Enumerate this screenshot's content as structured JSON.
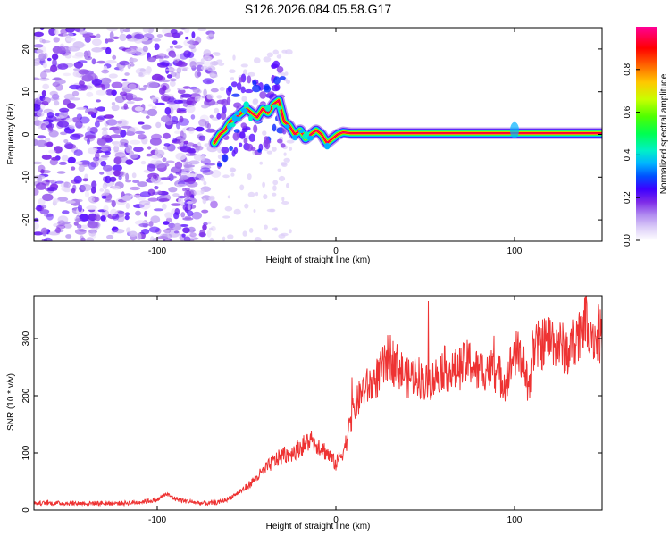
{
  "title": "S126.2026.084.05.58.G17",
  "chart_data": [
    {
      "type": "heatmap",
      "xlabel": "Height of straight line (km)",
      "ylabel": "Frequency (Hz)",
      "xlim": [
        -169,
        149
      ],
      "ylim": [
        -25,
        25
      ],
      "xticks": [
        -100,
        0,
        100
      ],
      "xtick_labels": [
        "-100",
        "0",
        "100"
      ],
      "yticks": [
        -20,
        -10,
        0,
        10,
        20
      ],
      "ytick_labels": [
        "-20",
        "-10",
        "0",
        "10",
        "20"
      ],
      "colorbar": {
        "label": "Normalized spectral amplitude",
        "range": [
          0,
          1
        ],
        "ticks": [
          0,
          0.2,
          0.4,
          0.6,
          0.8
        ],
        "tick_labels": [
          "0.0",
          "0.2",
          "0.4",
          "0.6",
          "0.8"
        ],
        "colormap": [
          "#ffffff",
          "#dccdf8",
          "#7d2ae8",
          "#0000ff",
          "#00b4ff",
          "#00f0c8",
          "#00ff00",
          "#c8ff00",
          "#ffa000",
          "#ff0000",
          "#ff00c8"
        ]
      },
      "trace": {
        "x": [
          -68,
          -65,
          -62,
          -59,
          -56,
          -53,
          -50,
          -47,
          -44,
          -41,
          -38,
          -35,
          -32,
          -29,
          -26,
          -23,
          -20,
          -17,
          -14,
          -11,
          -8,
          -5,
          -2,
          1,
          4,
          8,
          12,
          100,
          149
        ],
        "y": [
          -2,
          0,
          1,
          3,
          4,
          5,
          6,
          5,
          4,
          6,
          5,
          7,
          8,
          3,
          2,
          0,
          1,
          -1,
          0,
          1,
          0,
          -2,
          -1,
          0,
          0.5,
          0.3,
          0.3,
          0.3,
          0.3
        ]
      },
      "scatter_region_x": [
        -169,
        -67
      ],
      "scatter_region_y": [
        -25,
        25
      ]
    },
    {
      "type": "line",
      "xlabel": "Height of straight line (km)",
      "ylabel": "SNR (10 * v/v)",
      "xlim": [
        -169,
        149
      ],
      "ylim": [
        0,
        375
      ],
      "xticks": [
        -100,
        0,
        100
      ],
      "xtick_labels": [
        "-100",
        "0",
        "100"
      ],
      "yticks": [
        0,
        100,
        200,
        300
      ],
      "ytick_labels": [
        "0",
        "100",
        "200",
        "300"
      ],
      "series": [
        {
          "name": "SNR",
          "color": "#ee3333",
          "x": [
            -169,
            -160,
            -150,
            -140,
            -130,
            -120,
            -110,
            -100,
            -95,
            -90,
            -85,
            -80,
            -75,
            -70,
            -65,
            -60,
            -55,
            -50,
            -45,
            -40,
            -35,
            -30,
            -25,
            -20,
            -15,
            -10,
            -5,
            0,
            5,
            10,
            15,
            20,
            25,
            30,
            35,
            40,
            45,
            50,
            55,
            60,
            65,
            70,
            75,
            80,
            85,
            90,
            95,
            100,
            105,
            108,
            110,
            115,
            120,
            125,
            130,
            135,
            140,
            145,
            149
          ],
          "y": [
            12,
            12,
            12,
            12,
            12,
            12,
            14,
            18,
            28,
            20,
            16,
            14,
            12,
            12,
            14,
            20,
            30,
            40,
            55,
            70,
            85,
            95,
            100,
            110,
            120,
            115,
            100,
            80,
            110,
            175,
            210,
            220,
            240,
            270,
            250,
            230,
            240,
            220,
            230,
            250,
            240,
            250,
            260,
            240,
            250,
            240,
            225,
            275,
            265,
            200,
            280,
            290,
            300,
            290,
            275,
            305,
            340,
            300,
            305
          ]
        }
      ]
    }
  ]
}
